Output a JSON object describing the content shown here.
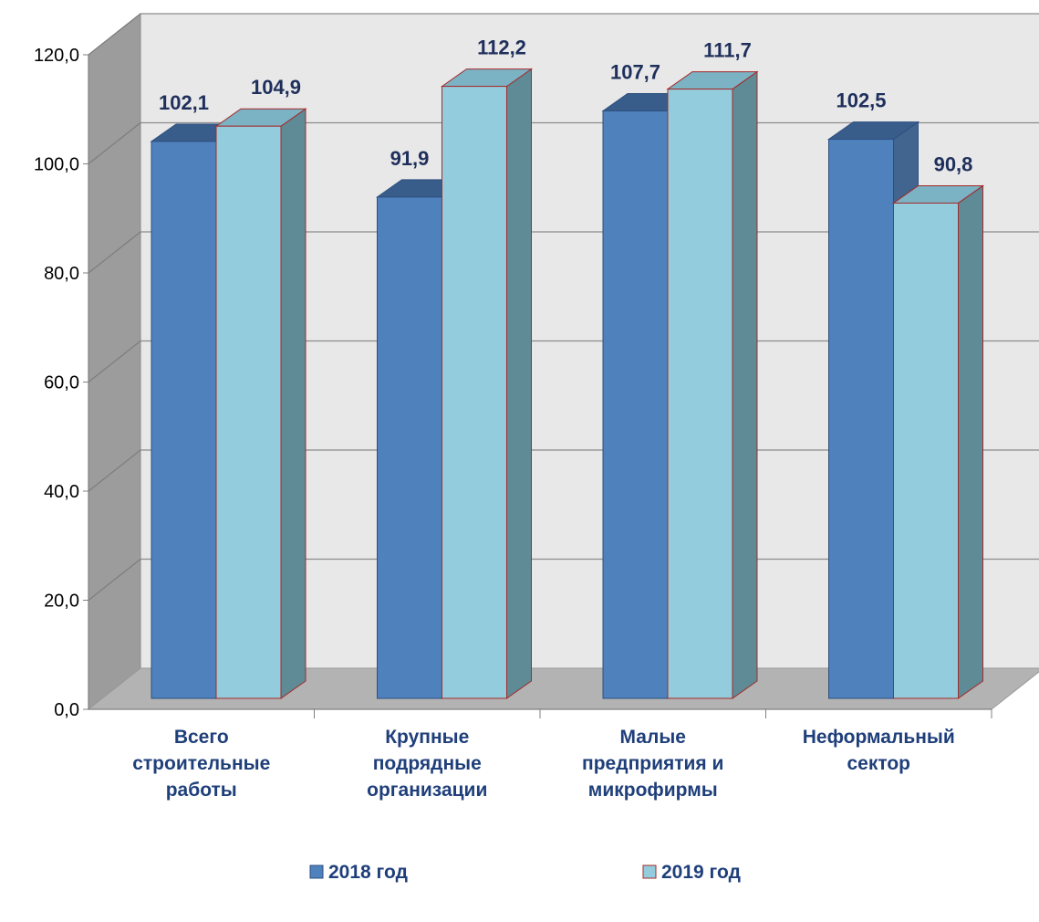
{
  "chart_data": {
    "type": "bar",
    "categories": [
      [
        "Всего",
        "строительные",
        "работы"
      ],
      [
        "Крупные",
        "подрядные",
        "организации"
      ],
      [
        "Малые",
        "предприятия и",
        "микрофирмы"
      ],
      [
        "Неформальный",
        "сектор"
      ]
    ],
    "series": [
      {
        "name": "2018 год",
        "values": [
          102.1,
          91.9,
          107.7,
          102.5
        ],
        "value_labels": [
          "102,1",
          "91,9",
          "107,7",
          "102,5"
        ],
        "color": "#4f81bd"
      },
      {
        "name": "2019 год",
        "values": [
          104.9,
          112.2,
          111.7,
          90.8
        ],
        "value_labels": [
          "104,9",
          "112,2",
          "111,7",
          "90,8"
        ],
        "color": "#93cddd"
      }
    ],
    "y_ticks": [
      "0,0",
      "20,0",
      "40,0",
      "60,0",
      "80,0",
      "100,0",
      "120,0"
    ],
    "ylim": [
      0,
      120
    ],
    "grid": true,
    "legend_position": "bottom",
    "style": "3d-clustered-column"
  }
}
